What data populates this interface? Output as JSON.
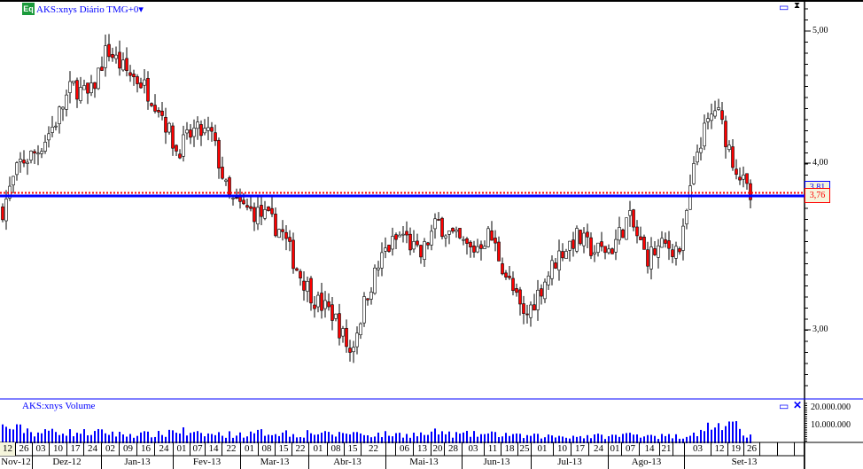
{
  "header": {
    "badge": "Eq",
    "title": "AKS:xnys Diário TMG+0",
    "dropdown_icon": "caret-down-icon"
  },
  "volume_panel": {
    "title": "AKS:xnys Volume"
  },
  "price_labels": {
    "dotted": "3,81",
    "last": "3,76"
  },
  "colors": {
    "up": "#ffffff",
    "down": "#ff0000",
    "line": "#0000ff",
    "volume": "#0000ff",
    "dotted": "#ff0000"
  },
  "chart_data": {
    "type": "candlestick",
    "scale": "log",
    "price_ticks": [
      "5,00",
      "4,00",
      "3,00"
    ],
    "volume_ticks": [
      "20.000.000",
      "10.000.000"
    ],
    "ylim": [
      2.7,
      5.2
    ],
    "closes_weekly": [
      3.7,
      4.0,
      4.08,
      4.28,
      4.56,
      4.47,
      4.85,
      4.68,
      4.58,
      4.4,
      4.08,
      4.22,
      4.2,
      3.76,
      3.7,
      3.66,
      3.57,
      3.33,
      3.17,
      3.1,
      2.9,
      3.22,
      3.45,
      3.55,
      3.41,
      3.62,
      3.52,
      3.45,
      3.55,
      3.3,
      3.07,
      3.25,
      3.43,
      3.53,
      3.45,
      3.46,
      3.65,
      3.41,
      3.48,
      3.46,
      4.12,
      4.4,
      4.02,
      3.76
    ],
    "volume_weekly_millions": [
      9,
      8,
      6,
      7,
      6,
      6,
      6,
      5,
      5,
      5,
      7,
      5,
      5,
      5,
      5,
      6,
      6,
      5,
      6,
      5,
      6,
      5,
      5,
      5,
      5,
      6,
      5,
      5,
      5,
      5,
      4,
      4,
      4,
      4,
      4,
      4,
      5,
      5,
      4,
      4,
      6,
      10,
      9,
      5
    ],
    "support_level": 3.76,
    "dotted_level": 3.81,
    "day_labels": [
      "12",
      "26",
      "03",
      "10",
      "17",
      "24",
      "02",
      "09",
      "16",
      "24",
      "01",
      "07",
      "14",
      "22",
      "01",
      "08",
      "15",
      "22",
      "01",
      "08",
      "15",
      "22",
      "",
      "06",
      "13",
      "20",
      "28",
      "03",
      "11",
      "18",
      "25",
      "01",
      "10",
      "17",
      "24",
      "01",
      "07",
      "14",
      "21",
      "",
      "03",
      "12",
      "19",
      "26",
      "",
      "",
      ""
    ],
    "month_labels": [
      "Nov-12",
      "Dez-12",
      "Jan-13",
      "Fev-13",
      "Mar-13",
      "Abr-13",
      "Mai-13",
      "Jun-13",
      "Jul-13",
      "Ago-13",
      "Set-13"
    ]
  }
}
